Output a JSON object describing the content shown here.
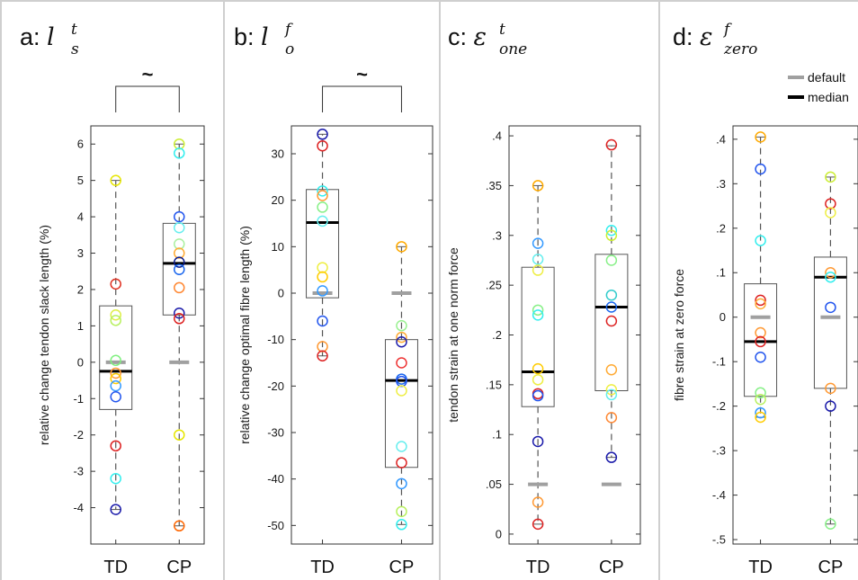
{
  "chart_data": [
    {
      "type": "box",
      "panel": "a",
      "title_prefix": "a: ",
      "title_symbol": "l",
      "title_sub": "s",
      "title_sup": "t",
      "ylabel": "relative change tendon slack length (%)",
      "ylim": [
        -5,
        6.5
      ],
      "yticks": [
        -4,
        -3,
        -2,
        -1,
        0,
        1,
        2,
        3,
        4,
        5,
        6
      ],
      "categories": [
        "TD",
        "CP"
      ],
      "significance": "~",
      "boxes": [
        {
          "q1": -1.3,
          "median": -0.25,
          "q3": 1.55,
          "whisker_low": -4.05,
          "whisker_high": 5.0,
          "default": 0.0
        },
        {
          "q1": 1.3,
          "median": 2.72,
          "q3": 3.82,
          "whisker_low": -4.5,
          "whisker_high": 6.0,
          "default": 0.0
        }
      ],
      "points": [
        [
          [
            5.0,
            "#e6e600"
          ],
          [
            2.15,
            "#e03020"
          ],
          [
            1.3,
            "#ddee44"
          ],
          [
            1.15,
            "#b8f060"
          ],
          [
            0.05,
            "#80f080"
          ],
          [
            -0.3,
            "#ff9933"
          ],
          [
            -0.45,
            "#ffcc00"
          ],
          [
            -0.65,
            "#3399ff"
          ],
          [
            -0.95,
            "#2255ee"
          ],
          [
            -2.3,
            "#dd2222"
          ],
          [
            -3.2,
            "#33eeee"
          ],
          [
            -4.05,
            "#1a1aaa"
          ]
        ],
        [
          [
            6.0,
            "#ccee33"
          ],
          [
            5.75,
            "#33eeee"
          ],
          [
            4.0,
            "#2255ee"
          ],
          [
            3.7,
            "#66eeee"
          ],
          [
            3.25,
            "#aaf0a0"
          ],
          [
            3.0,
            "#ffaa33"
          ],
          [
            2.75,
            "#0a1a8a"
          ],
          [
            2.55,
            "#1a66ee"
          ],
          [
            2.05,
            "#ff8833"
          ],
          [
            1.35,
            "#1a1aaa"
          ],
          [
            1.2,
            "#dd2222"
          ],
          [
            -2.0,
            "#e6e600"
          ],
          [
            -4.5,
            "#ff6600"
          ]
        ]
      ]
    },
    {
      "type": "box",
      "panel": "b",
      "title_prefix": "b: ",
      "title_symbol": "l",
      "title_sub": "o",
      "title_sup": "f",
      "ylabel": "relative change optimal fibre length (%)",
      "ylim": [
        -54,
        36
      ],
      "yticks": [
        -50,
        -40,
        -30,
        -20,
        -10,
        0,
        10,
        20,
        30
      ],
      "categories": [
        "TD",
        "CP"
      ],
      "significance": "~",
      "boxes": [
        {
          "q1": -1.0,
          "median": 15.2,
          "q3": 22.3,
          "whisker_low": -13.5,
          "whisker_high": 34.2,
          "default": 0.0
        },
        {
          "q1": -37.5,
          "median": -18.8,
          "q3": -10.0,
          "whisker_low": -49.8,
          "whisker_high": 10.0,
          "default": 0.0
        }
      ],
      "points": [
        [
          [
            34.2,
            "#1a1aaa"
          ],
          [
            31.7,
            "#dd2222"
          ],
          [
            22.0,
            "#33eeee"
          ],
          [
            21.0,
            "#ff9933"
          ],
          [
            18.5,
            "#88f088"
          ],
          [
            15.5,
            "#66eeee"
          ],
          [
            5.5,
            "#eeee44"
          ],
          [
            3.5,
            "#ffcc00"
          ],
          [
            0.5,
            "#3399ff"
          ],
          [
            -6.0,
            "#2255ee"
          ],
          [
            -11.5,
            "#ff9933"
          ],
          [
            -13.5,
            "#dd2222"
          ]
        ],
        [
          [
            10.0,
            "#ffaa00"
          ],
          [
            -7.0,
            "#99f090"
          ],
          [
            -9.5,
            "#ffaa33"
          ],
          [
            -10.5,
            "#1a1aaa"
          ],
          [
            -15.0,
            "#ee3333"
          ],
          [
            -18.5,
            "#1a66ee"
          ],
          [
            -19.0,
            "#2255ee"
          ],
          [
            -21.0,
            "#eeee44"
          ],
          [
            -33.0,
            "#66eeee"
          ],
          [
            -36.5,
            "#dd2222"
          ],
          [
            -41.0,
            "#3399ff"
          ],
          [
            -47.0,
            "#b8f060"
          ],
          [
            -49.8,
            "#33eeee"
          ]
        ]
      ]
    },
    {
      "type": "box",
      "panel": "c",
      "title_prefix": "c: ",
      "title_symbol": "ε",
      "title_sub": "one",
      "title_sup": "t",
      "ylabel": "tendon strain at one norm force",
      "ylim": [
        -0.01,
        0.41
      ],
      "yticks": [
        0,
        0.05,
        0.1,
        0.15,
        0.2,
        0.25,
        0.3,
        0.35,
        0.4
      ],
      "categories": [
        "TD",
        "CP"
      ],
      "significance": "",
      "boxes": [
        {
          "q1": 0.128,
          "median": 0.163,
          "q3": 0.268,
          "whisker_low": 0.01,
          "whisker_high": 0.35,
          "default": 0.05
        },
        {
          "q1": 0.144,
          "median": 0.228,
          "q3": 0.281,
          "whisker_low": 0.077,
          "whisker_high": 0.39,
          "default": 0.05
        }
      ],
      "points": [
        [
          [
            0.35,
            "#ffaa00"
          ],
          [
            0.292,
            "#3399ff"
          ],
          [
            0.276,
            "#66eeee"
          ],
          [
            0.265,
            "#eeee44"
          ],
          [
            0.225,
            "#88f088"
          ],
          [
            0.22,
            "#33eeee"
          ],
          [
            0.166,
            "#ffcc00"
          ],
          [
            0.155,
            "#eeee44"
          ],
          [
            0.141,
            "#dd2222"
          ],
          [
            0.139,
            "#2255ee"
          ],
          [
            0.093,
            "#1a1aaa"
          ],
          [
            0.032,
            "#ff9933"
          ],
          [
            0.01,
            "#dd2222"
          ]
        ],
        [
          [
            0.391,
            "#dd2222"
          ],
          [
            0.305,
            "#33eeee"
          ],
          [
            0.3,
            "#ccee33"
          ],
          [
            0.275,
            "#88f088"
          ],
          [
            0.24,
            "#33cccc"
          ],
          [
            0.228,
            "#1a66ee"
          ],
          [
            0.214,
            "#dd2222"
          ],
          [
            0.165,
            "#ffaa33"
          ],
          [
            0.145,
            "#eeee44"
          ],
          [
            0.14,
            "#66eeee"
          ],
          [
            0.117,
            "#ff8833"
          ],
          [
            0.077,
            "#1a1aaa"
          ]
        ]
      ]
    },
    {
      "type": "box",
      "panel": "d",
      "title_prefix": "d: ",
      "title_symbol": "ε",
      "title_sub": "zero",
      "title_sup": "f",
      "ylabel": "fibre strain at zero force",
      "ylim": [
        -0.51,
        0.43
      ],
      "yticks": [
        -0.5,
        -0.4,
        -0.3,
        -0.2,
        -0.1,
        0,
        0.1,
        0.2,
        0.3,
        0.4
      ],
      "categories": [
        "TD",
        "CP"
      ],
      "significance": "",
      "legend": [
        "default",
        "median"
      ],
      "boxes": [
        {
          "q1": -0.178,
          "median": -0.055,
          "q3": 0.075,
          "whisker_low": -0.225,
          "whisker_high": 0.405,
          "default": 0.0
        },
        {
          "q1": -0.16,
          "median": 0.09,
          "q3": 0.135,
          "whisker_low": -0.465,
          "whisker_high": 0.315,
          "default": 0.0
        }
      ],
      "points": [
        [
          [
            0.405,
            "#ffaa00"
          ],
          [
            0.333,
            "#2255ee"
          ],
          [
            0.172,
            "#33eeee"
          ],
          [
            0.038,
            "#dd2222"
          ],
          [
            0.03,
            "#ffaa33"
          ],
          [
            -0.035,
            "#ff9933"
          ],
          [
            -0.055,
            "#dd2222"
          ],
          [
            -0.09,
            "#2255ee"
          ],
          [
            -0.17,
            "#88f088"
          ],
          [
            -0.185,
            "#b8f060"
          ],
          [
            -0.215,
            "#3399ff"
          ],
          [
            -0.225,
            "#ffcc00"
          ]
        ],
        [
          [
            0.315,
            "#ccee33"
          ],
          [
            0.255,
            "#dd2222"
          ],
          [
            0.235,
            "#eeee44"
          ],
          [
            0.1,
            "#ff9933"
          ],
          [
            0.09,
            "#33eeee"
          ],
          [
            0.022,
            "#2255ee"
          ],
          [
            -0.16,
            "#ff9933"
          ],
          [
            -0.2,
            "#1a1aaa"
          ],
          [
            -0.465,
            "#88f088"
          ]
        ]
      ]
    }
  ],
  "colors": {
    "default_marker": "#a0a0a0",
    "median_marker": "#000000",
    "box_stroke": "#555555",
    "whisker": "#555555",
    "divider": "#cfcfcf"
  }
}
